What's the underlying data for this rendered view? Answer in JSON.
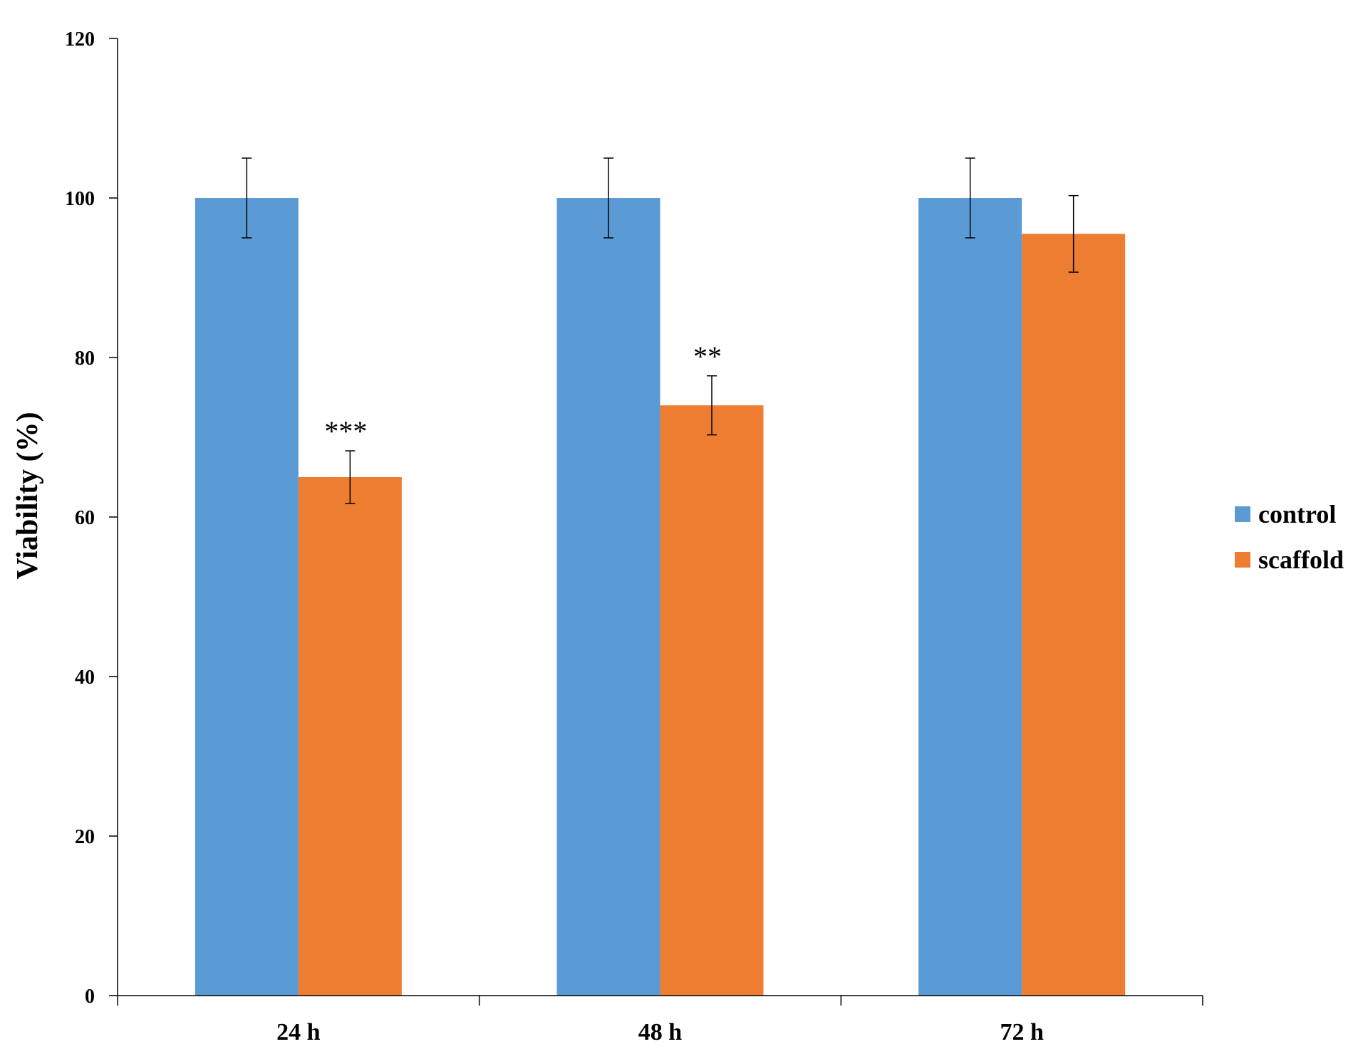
{
  "chart_data": {
    "type": "bar",
    "categories": [
      "24 h",
      "48 h",
      "72 h"
    ],
    "series": [
      {
        "name": "control",
        "color": "#5B9BD5",
        "values": [
          100,
          100,
          100
        ],
        "errors": [
          5,
          5,
          5
        ]
      },
      {
        "name": "scaffold",
        "color": "#ED7D31",
        "values": [
          65,
          74,
          95.5
        ],
        "errors": [
          3.3,
          3.7,
          4.8
        ]
      }
    ],
    "annotations": [
      "***",
      "**",
      ""
    ],
    "ylabel": "Viability (%)",
    "xlabel": "",
    "title": "",
    "ylim": [
      0,
      120
    ],
    "yticks": [
      0,
      20,
      40,
      60,
      80,
      100,
      120
    ],
    "grid": false,
    "legend_position": "right"
  }
}
